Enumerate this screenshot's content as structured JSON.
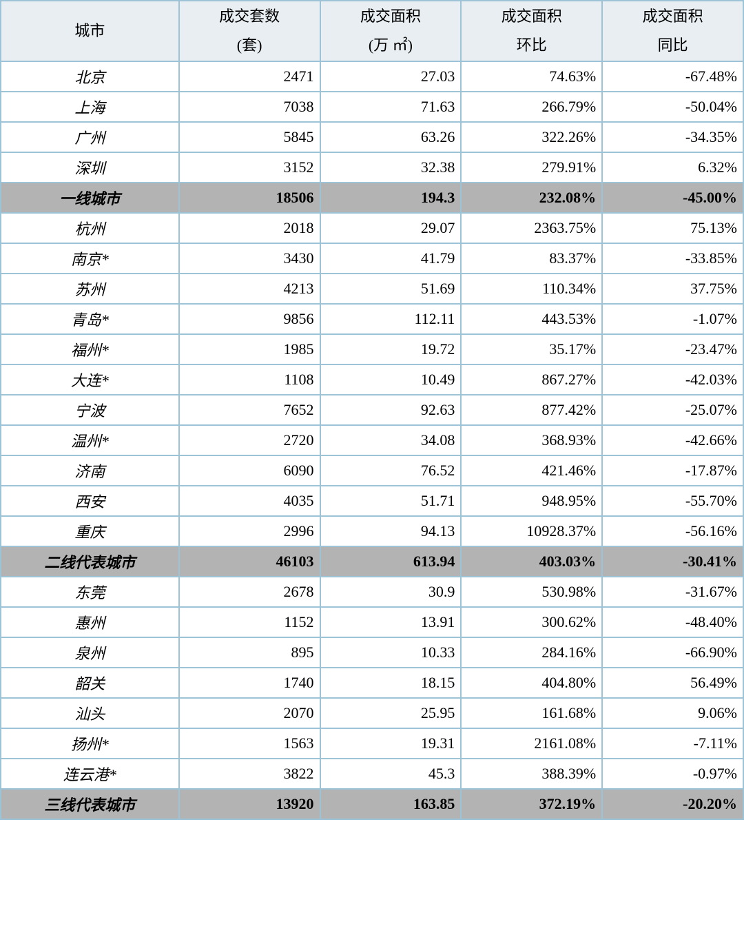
{
  "table": {
    "type": "table",
    "columns": [
      {
        "line1": "城市",
        "line2": ""
      },
      {
        "line1": "成交套数",
        "line2": "(套)"
      },
      {
        "line1": "成交面积",
        "line2": "(万 ㎡)"
      },
      {
        "line1": "成交面积",
        "line2": "环比"
      },
      {
        "line1": "成交面积",
        "line2": "同比"
      }
    ],
    "header_bg": "#e8eef2",
    "border_color": "#9dc3d6",
    "summary_bg": "#b3b3b3",
    "row_bg": "#ffffff",
    "font_size": 22,
    "rows": [
      {
        "city": "北京",
        "units": "2471",
        "area": "27.03",
        "mom": "74.63%",
        "yoy": "-67.48%",
        "summary": false
      },
      {
        "city": "上海",
        "units": "7038",
        "area": "71.63",
        "mom": "266.79%",
        "yoy": "-50.04%",
        "summary": false
      },
      {
        "city": "广州",
        "units": "5845",
        "area": "63.26",
        "mom": "322.26%",
        "yoy": "-34.35%",
        "summary": false
      },
      {
        "city": "深圳",
        "units": "3152",
        "area": "32.38",
        "mom": "279.91%",
        "yoy": "6.32%",
        "summary": false
      },
      {
        "city": "一线城市",
        "units": "18506",
        "area": "194.3",
        "mom": "232.08%",
        "yoy": "-45.00%",
        "summary": true
      },
      {
        "city": "杭州",
        "units": "2018",
        "area": "29.07",
        "mom": "2363.75%",
        "yoy": "75.13%",
        "summary": false
      },
      {
        "city": "南京*",
        "units": "3430",
        "area": "41.79",
        "mom": "83.37%",
        "yoy": "-33.85%",
        "summary": false
      },
      {
        "city": "苏州",
        "units": "4213",
        "area": "51.69",
        "mom": "110.34%",
        "yoy": "37.75%",
        "summary": false
      },
      {
        "city": "青岛*",
        "units": "9856",
        "area": "112.11",
        "mom": "443.53%",
        "yoy": "-1.07%",
        "summary": false
      },
      {
        "city": "福州*",
        "units": "1985",
        "area": "19.72",
        "mom": "35.17%",
        "yoy": "-23.47%",
        "summary": false
      },
      {
        "city": "大连*",
        "units": "1108",
        "area": "10.49",
        "mom": "867.27%",
        "yoy": "-42.03%",
        "summary": false
      },
      {
        "city": "宁波",
        "units": "7652",
        "area": "92.63",
        "mom": "877.42%",
        "yoy": "-25.07%",
        "summary": false
      },
      {
        "city": "温州*",
        "units": "2720",
        "area": "34.08",
        "mom": "368.93%",
        "yoy": "-42.66%",
        "summary": false
      },
      {
        "city": "济南",
        "units": "6090",
        "area": "76.52",
        "mom": "421.46%",
        "yoy": "-17.87%",
        "summary": false
      },
      {
        "city": "西安",
        "units": "4035",
        "area": "51.71",
        "mom": "948.95%",
        "yoy": "-55.70%",
        "summary": false
      },
      {
        "city": "重庆",
        "units": "2996",
        "area": "94.13",
        "mom": "10928.37%",
        "yoy": "-56.16%",
        "summary": false
      },
      {
        "city": "二线代表城市",
        "units": "46103",
        "area": "613.94",
        "mom": "403.03%",
        "yoy": "-30.41%",
        "summary": true
      },
      {
        "city": "东莞",
        "units": "2678",
        "area": "30.9",
        "mom": "530.98%",
        "yoy": "-31.67%",
        "summary": false
      },
      {
        "city": "惠州",
        "units": "1152",
        "area": "13.91",
        "mom": "300.62%",
        "yoy": "-48.40%",
        "summary": false
      },
      {
        "city": "泉州",
        "units": "895",
        "area": "10.33",
        "mom": "284.16%",
        "yoy": "-66.90%",
        "summary": false
      },
      {
        "city": "韶关",
        "units": "1740",
        "area": "18.15",
        "mom": "404.80%",
        "yoy": "56.49%",
        "summary": false
      },
      {
        "city": "汕头",
        "units": "2070",
        "area": "25.95",
        "mom": "161.68%",
        "yoy": "9.06%",
        "summary": false
      },
      {
        "city": "扬州*",
        "units": "1563",
        "area": "19.31",
        "mom": "2161.08%",
        "yoy": "-7.11%",
        "summary": false
      },
      {
        "city": "连云港*",
        "units": "3822",
        "area": "45.3",
        "mom": "388.39%",
        "yoy": "-0.97%",
        "summary": false
      },
      {
        "city": "三线代表城市",
        "units": "13920",
        "area": "163.85",
        "mom": "372.19%",
        "yoy": "-20.20%",
        "summary": true
      }
    ]
  }
}
